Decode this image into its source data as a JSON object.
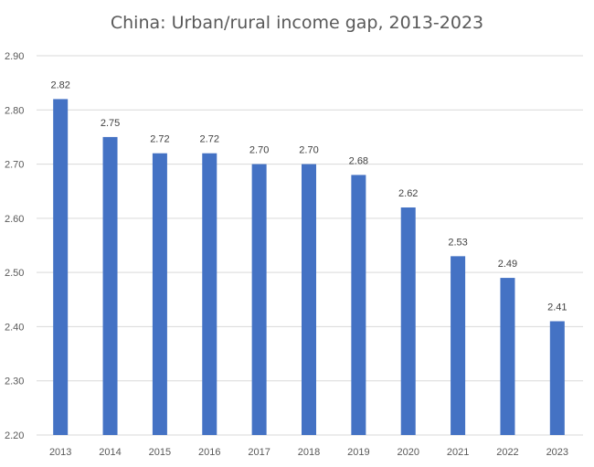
{
  "chart_data": {
    "type": "bar",
    "title": "China: Urban/rural income gap, 2013-2023",
    "xlabel": "",
    "ylabel": "",
    "categories": [
      "2013",
      "2014",
      "2015",
      "2016",
      "2017",
      "2018",
      "2019",
      "2020",
      "2021",
      "2022",
      "2023"
    ],
    "values": [
      2.82,
      2.75,
      2.72,
      2.72,
      2.7,
      2.7,
      2.68,
      2.62,
      2.53,
      2.49,
      2.41
    ],
    "data_labels": [
      "2.82",
      "2.75",
      "2.72",
      "2.72",
      "2.70",
      "2.70",
      "2.68",
      "2.62",
      "2.53",
      "2.49",
      "2.41"
    ],
    "ylim": [
      2.2,
      2.9
    ],
    "yticks": [
      "2.20",
      "2.30",
      "2.40",
      "2.50",
      "2.60",
      "2.70",
      "2.80",
      "2.90"
    ],
    "grid": true,
    "legend": "none",
    "colors": {
      "bar": "#4472c4",
      "grid": "#d9d9d9",
      "text": "#595959"
    }
  }
}
